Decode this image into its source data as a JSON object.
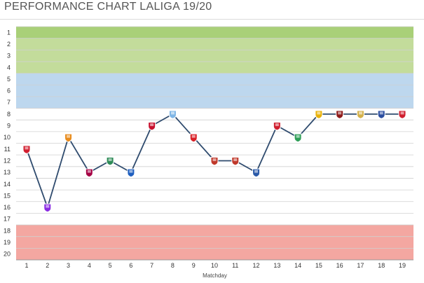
{
  "title": "PERFORMANCE CHART LALIGA 19/20",
  "chart_data": {
    "type": "line",
    "title": "PERFORMANCE CHART LALIGA 19/20",
    "xlabel": "Matchday",
    "ylabel": "",
    "x": [
      1,
      2,
      3,
      4,
      5,
      6,
      7,
      8,
      9,
      10,
      11,
      12,
      13,
      14,
      15,
      16,
      17,
      18,
      19
    ],
    "series": [
      {
        "name": "",
        "values": [
          11,
          16,
          10,
          13,
          12,
          13,
          9,
          8,
          10,
          12,
          12,
          13,
          9,
          10,
          8,
          8,
          8,
          8,
          8
        ]
      }
    ],
    "ylim": [
      1,
      20
    ],
    "y_reversed": true,
    "y_ticks": [
      1,
      2,
      3,
      4,
      5,
      6,
      7,
      8,
      9,
      10,
      11,
      12,
      13,
      14,
      15,
      16,
      17,
      18,
      19,
      20
    ],
    "bands": [
      {
        "from": 1,
        "to": 4,
        "color": "#c3dc9b"
      },
      {
        "from": 5,
        "to": 7,
        "color": "#bdd7ee"
      },
      {
        "from": 8,
        "to": 17,
        "color": "#ffffff"
      },
      {
        "from": 18,
        "to": 20,
        "color": "#f4a7a1"
      }
    ],
    "top_highlight_color": "#a9d078",
    "line_color": "#2f4b6e",
    "grid": true,
    "opponent_badge_colors": [
      "#d21f2f",
      "#8a2be2",
      "#e88b1c",
      "#a50044",
      "#2e8b57",
      "#1f5fbf",
      "#c8102e",
      "#7fb6e6",
      "#d91f26",
      "#c0392b",
      "#c0392b",
      "#2b5aa8",
      "#d01f2f",
      "#2e9e57",
      "#e8b20a",
      "#8e1b1b",
      "#d4b24c",
      "#2b4ea0",
      "#d01f2f"
    ]
  }
}
